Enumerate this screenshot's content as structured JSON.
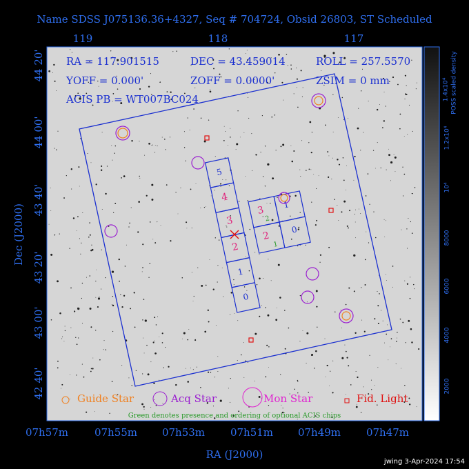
{
  "title": "Name SDSS J075136.36+4327, Seq # 704724, Obsid 26803, ST Scheduled",
  "info": [
    "RA = 117.901515",
    "DEC = 43.459014",
    "ROLL = 257.5570",
    "YOFF = 0.000'",
    "ZOFF = 0.0000'",
    "ZSIM = 0 mm",
    "ACIS PB = WT007BC024"
  ],
  "top_axis": {
    "labels": [
      "119",
      "118",
      "117"
    ]
  },
  "left_axis": {
    "title": "Dec (J2000)",
    "labels": [
      "44 20'",
      "44 00'",
      "43 40'",
      "43 20'",
      "43 00'",
      "42 40'"
    ]
  },
  "bottom_axis": {
    "title": "RA (J2000)",
    "labels": [
      "07h57m",
      "07h55m",
      "07h53m",
      "07h51m",
      "07h49m",
      "07h47m"
    ]
  },
  "colorbar": {
    "title": "POSS scaled density",
    "labels": [
      "2000",
      "4000",
      "6000",
      "8000",
      "10⁴",
      "1.2x10⁴",
      "1.4x10⁴"
    ]
  },
  "s_chips": [
    "5",
    "4",
    "3",
    "2",
    "1",
    "0"
  ],
  "i_chips": [
    "3",
    "1",
    "2",
    "0"
  ],
  "optional_chips": [
    "2",
    "1"
  ],
  "legend": [
    "Guide Star",
    "Acq Star",
    "Mon Star",
    "Fid. Light"
  ],
  "note": "Green denotes presence and ordering of optional ACIS chips",
  "footer": "jwing  3-Apr-2024 17:54"
}
